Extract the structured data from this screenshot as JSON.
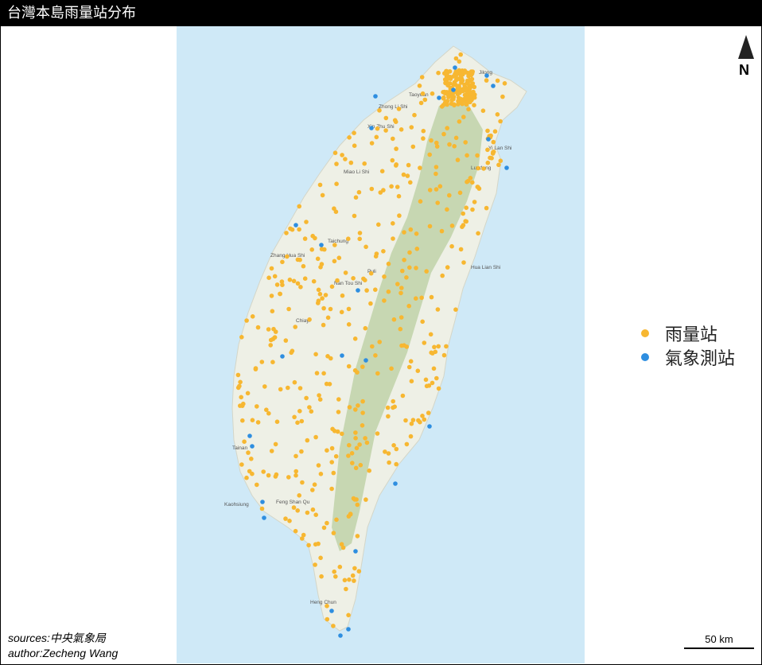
{
  "title": "台灣本島雨量站分布",
  "north_arrow": {
    "letter": "N"
  },
  "legend": {
    "items": [
      {
        "label": "雨量站",
        "color": "#f7b731"
      },
      {
        "label": "氣象測站",
        "color": "#2e8ee0"
      }
    ]
  },
  "credits": {
    "sources": "sources:中央氣象局",
    "author": "author:Zecheng Wang"
  },
  "scale": {
    "label": "50 km"
  },
  "map": {
    "colors": {
      "sea": "#cfe9f7",
      "land": "#eef0e6",
      "mountain": "#b9cfa0",
      "rain": "#f7b731",
      "weather": "#2e8ee0"
    },
    "place_labels": [
      "Jilong",
      "Taoyuan",
      "Xin Zhu Shi",
      "Zhong Li Shi",
      "Miao Li Shi",
      "Taichung",
      "Zhang Hua Shi",
      "Nan Tou Shi",
      "Puli",
      "Yi Lan Shi",
      "Hua Lian Shi",
      "Chiayi",
      "Tainan",
      "Kaohsiung",
      "Feng Shan Qu",
      "Heng Chun",
      "Luodong"
    ]
  }
}
